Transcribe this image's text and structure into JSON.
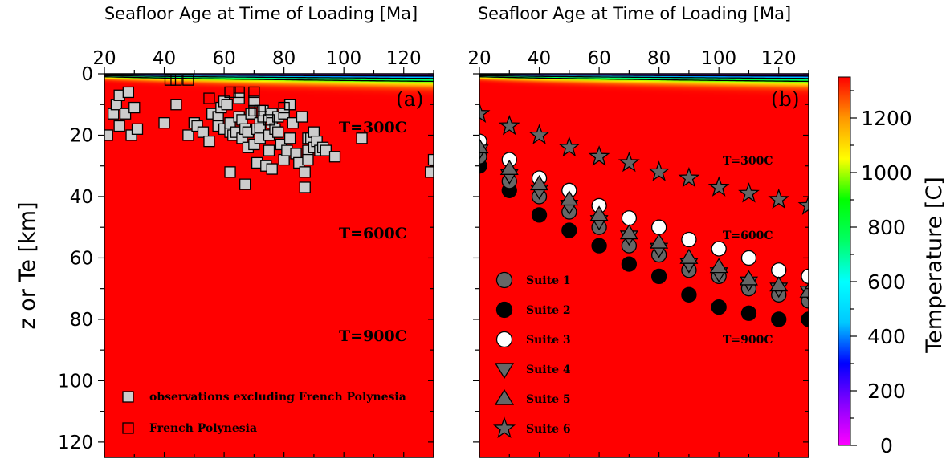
{
  "chart_data": [
    {
      "type": "scatter",
      "panel_label": "(a)",
      "xlabel": "Seafloor Age at Time of Loading [Ma]",
      "ylabel": "z or Te [km]",
      "xlim": [
        20,
        130
      ],
      "ylim": [
        0,
        125
      ],
      "y_inverted": true,
      "x_ticks": [
        "20",
        "40",
        "60",
        "80",
        "100",
        "120"
      ],
      "y_ticks": [
        "0",
        "20",
        "40",
        "60",
        "80",
        "100",
        "120"
      ],
      "background": "half-space cooling temperature field",
      "isotherms": [
        {
          "label": "T=300C",
          "temperature": 300
        },
        {
          "label": "T=600C",
          "temperature": 600
        },
        {
          "label": "T=900C",
          "temperature": 900
        }
      ],
      "legend": [
        {
          "label": "observations excluding French Polynesia",
          "marker": "square-filled"
        },
        {
          "label": "French Polynesia",
          "marker": "square-open"
        }
      ],
      "series": [
        {
          "name": "observations excluding French Polynesia",
          "marker": "square-filled",
          "color": "#cccccc",
          "x": [
            21,
            23,
            24,
            25,
            25,
            27,
            28,
            29,
            30,
            31,
            40,
            44,
            48,
            50,
            51,
            53,
            55,
            56,
            58,
            58,
            59,
            60,
            60,
            61,
            62,
            62,
            62,
            63,
            64,
            65,
            65,
            66,
            66,
            67,
            67,
            68,
            68,
            69,
            70,
            70,
            71,
            71,
            72,
            72,
            72,
            73,
            73,
            74,
            75,
            75,
            76,
            76,
            76,
            77,
            78,
            78,
            79,
            80,
            80,
            81,
            82,
            82,
            83,
            84,
            85,
            86,
            87,
            87,
            88,
            88,
            88,
            89,
            90,
            90,
            91,
            92,
            93,
            94,
            97,
            106,
            129,
            130
          ],
          "y": [
            20,
            13,
            10,
            17,
            7,
            13,
            6,
            20,
            11,
            18,
            16,
            10,
            20,
            16,
            17,
            19,
            22,
            13,
            14,
            17,
            11,
            18,
            9,
            10,
            19,
            16,
            32,
            20,
            19,
            14,
            8,
            15,
            21,
            18,
            36,
            24,
            19,
            13,
            23,
            9,
            18,
            29,
            16,
            18,
            21,
            12,
            14,
            30,
            20,
            25,
            13,
            16,
            31,
            18,
            14,
            19,
            23,
            28,
            13,
            25,
            21,
            10,
            16,
            26,
            29,
            14,
            37,
            32,
            25,
            28,
            21,
            21,
            24,
            19,
            22,
            25,
            24,
            25,
            27,
            21,
            32,
            28
          ]
        },
        {
          "name": "French Polynesia",
          "marker": "square-open",
          "color": "#000000",
          "x": [
            42,
            44,
            48,
            55,
            62,
            65,
            70,
            70,
            72,
            75,
            80,
            82
          ],
          "y": [
            2,
            2,
            2,
            8,
            6,
            6,
            6,
            12,
            12,
            15,
            11,
            10
          ]
        }
      ]
    },
    {
      "type": "scatter",
      "panel_label": "(b)",
      "xlabel": "Seafloor Age at Time of Loading [Ma]",
      "xlim": [
        20,
        130
      ],
      "ylim": [
        0,
        125
      ],
      "y_inverted": true,
      "x_ticks": [
        "20",
        "40",
        "60",
        "80",
        "100",
        "120"
      ],
      "isotherms": [
        {
          "label": "T=300C",
          "temperature": 300
        },
        {
          "label": "T=600C",
          "temperature": 600
        },
        {
          "label": "T=900C",
          "temperature": 900
        }
      ],
      "legend": [
        {
          "label": "Suite 1",
          "marker": "circle",
          "color": "#666666"
        },
        {
          "label": "Suite 2",
          "marker": "circle",
          "color": "#000000"
        },
        {
          "label": "Suite 3",
          "marker": "circle",
          "color": "#ffffff"
        },
        {
          "label": "Suite 4",
          "marker": "triangle-down",
          "color": "#666666"
        },
        {
          "label": "Suite 5",
          "marker": "triangle-up",
          "color": "#666666"
        },
        {
          "label": "Suite 6",
          "marker": "star",
          "color": "#666666"
        }
      ],
      "x": [
        20,
        30,
        40,
        50,
        60,
        70,
        80,
        90,
        100,
        110,
        120,
        130
      ],
      "series": [
        {
          "name": "Suite 1",
          "marker": "circle",
          "color": "#666666",
          "y": [
            27,
            35,
            40,
            45,
            50,
            56,
            59,
            64,
            66,
            70,
            72,
            74
          ]
        },
        {
          "name": "Suite 2",
          "marker": "circle",
          "color": "#000000",
          "y": [
            30,
            38,
            46,
            51,
            56,
            62,
            66,
            72,
            76,
            78,
            80,
            80
          ]
        },
        {
          "name": "Suite 3",
          "marker": "circle",
          "color": "#ffffff",
          "y": [
            22,
            28,
            34,
            38,
            43,
            47,
            50,
            54,
            57,
            60,
            64,
            66
          ]
        },
        {
          "name": "Suite 4",
          "marker": "triangle-down",
          "color": "#666666",
          "y": [
            25,
            33,
            38,
            43,
            48,
            53,
            57,
            62,
            65,
            68,
            70,
            71
          ]
        },
        {
          "name": "Suite 5",
          "marker": "triangle-up",
          "color": "#666666",
          "y": [
            24,
            31,
            36,
            41,
            46,
            52,
            55,
            60,
            63,
            67,
            69,
            71
          ]
        },
        {
          "name": "Suite 6",
          "marker": "star",
          "color": "#666666",
          "y": [
            13,
            17,
            20,
            24,
            27,
            29,
            32,
            34,
            37,
            39,
            41,
            43
          ]
        }
      ]
    }
  ],
  "colorbar": {
    "title": "Temperature [C]",
    "range": [
      0,
      1350
    ],
    "ticks": [
      "0",
      "200",
      "400",
      "600",
      "800",
      "1000",
      "1200"
    ],
    "stops": [
      "#ff00ff",
      "#8800ff",
      "#0000ff",
      "#00c8ff",
      "#00ffff",
      "#00ff64",
      "#00ff00",
      "#ffff00",
      "#ff9600",
      "#ff0000"
    ]
  }
}
